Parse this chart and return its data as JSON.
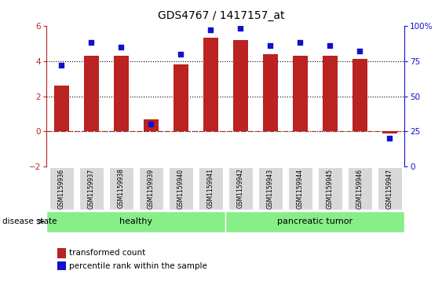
{
  "title": "GDS4767 / 1417157_at",
  "samples": [
    "GSM1159936",
    "GSM1159937",
    "GSM1159938",
    "GSM1159939",
    "GSM1159940",
    "GSM1159941",
    "GSM1159942",
    "GSM1159943",
    "GSM1159944",
    "GSM1159945",
    "GSM1159946",
    "GSM1159947"
  ],
  "bar_values": [
    2.6,
    4.3,
    4.3,
    0.7,
    3.8,
    5.3,
    5.2,
    4.4,
    4.3,
    4.3,
    4.1,
    -0.1
  ],
  "percentile_values": [
    72,
    88,
    85,
    30,
    80,
    97,
    98,
    86,
    88,
    86,
    82,
    20
  ],
  "bar_color": "#bb2222",
  "dot_color": "#1111cc",
  "ylim_left": [
    -2,
    6
  ],
  "ylim_right": [
    0,
    100
  ],
  "yticks_left": [
    -2,
    0,
    2,
    4,
    6
  ],
  "yticks_right": [
    0,
    25,
    50,
    75,
    100
  ],
  "ytick_labels_right": [
    "0",
    "25",
    "50",
    "75",
    "100%"
  ],
  "grid_lines": [
    0,
    2,
    4
  ],
  "healthy_label": "healthy",
  "tumor_label": "pancreatic tumor",
  "healthy_color": "#88ee88",
  "tumor_color": "#88ee88",
  "disease_state_label": "disease state",
  "legend_bar_label": "transformed count",
  "legend_dot_label": "percentile rank within the sample",
  "title_fontsize": 10,
  "tick_fontsize": 7.5,
  "label_fontsize": 8,
  "healthy_count": 6,
  "tumor_count": 6,
  "bar_width": 0.5
}
